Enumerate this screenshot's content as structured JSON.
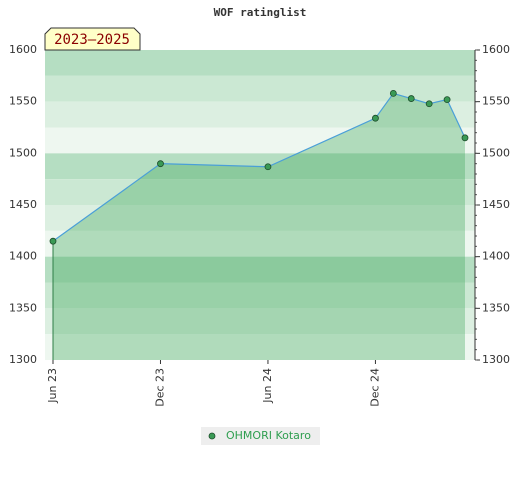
{
  "chart_data": {
    "type": "area",
    "title": "WOF ratinglist",
    "annotation": "2023–2025",
    "x": [
      "2023-06",
      "2023-12",
      "2024-06",
      "2024-12",
      "2025-01",
      "2025-02",
      "2025-03",
      "2025-04",
      "2025-05"
    ],
    "series": [
      {
        "name": "OHMORI Kotaro",
        "color": "#4a9fd8",
        "marker_color": "#3a9a55",
        "values": [
          1415,
          1490,
          1487,
          1534,
          1558,
          1553,
          1548,
          1552,
          1515
        ]
      }
    ],
    "xlim": [
      "2023-06",
      "2025-05"
    ],
    "xticks": [
      {
        "value": "2023-06",
        "label": "Jun 23"
      },
      {
        "value": "2023-12",
        "label": "Dec 23"
      },
      {
        "value": "2024-06",
        "label": "Jun 24"
      },
      {
        "value": "2024-12",
        "label": "Dec 24"
      }
    ],
    "ylim": [
      1300,
      1600
    ],
    "yticks": [
      1300,
      1350,
      1400,
      1450,
      1500,
      1550,
      1600
    ]
  }
}
